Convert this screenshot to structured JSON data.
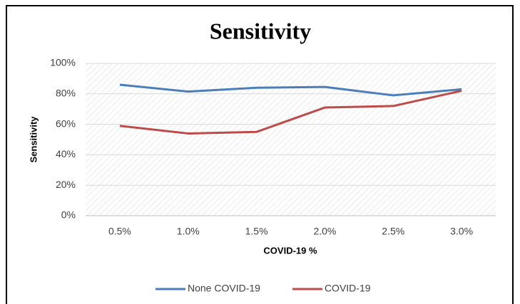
{
  "chart_data": {
    "type": "line",
    "title": "Sensitivity",
    "x_label": "COVID-19 %",
    "y_label": "Sensitivity",
    "categories": [
      "0.5%",
      "1.0%",
      "1.5%",
      "2.0%",
      "2.5%",
      "3.0%"
    ],
    "series": [
      {
        "name": "None COVID-19",
        "color": "#4a7ebb",
        "values": [
          86,
          81.5,
          84,
          84.5,
          79,
          83
        ]
      },
      {
        "name": "COVID-19",
        "color": "#be4b48",
        "values": [
          59,
          54,
          55,
          71,
          72,
          82
        ]
      }
    ],
    "ylim": [
      0,
      100
    ],
    "yticks": [
      {
        "value": 0,
        "label": "0%"
      },
      {
        "value": 20,
        "label": "20%"
      },
      {
        "value": 40,
        "label": "40%"
      },
      {
        "value": 60,
        "label": "60%"
      },
      {
        "value": 80,
        "label": "80%"
      },
      {
        "value": 100,
        "label": "100%"
      }
    ],
    "grid": true,
    "legend": "bottom"
  }
}
